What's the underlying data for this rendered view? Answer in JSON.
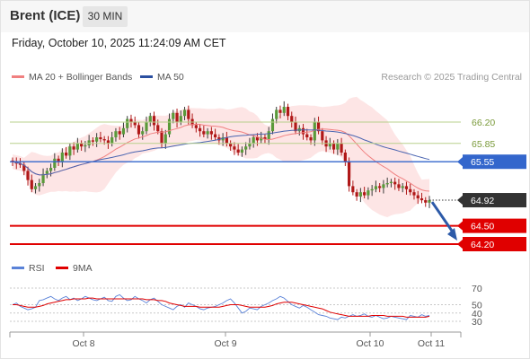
{
  "header": {
    "instrument": "Brent (ICE)",
    "timeframe": "30 MIN"
  },
  "timestamp": "Friday, October 10, 2025 11:24:09 AM CET",
  "legend": {
    "ma20_bb": "MA 20 + Bollinger Bands",
    "ma50": "MA 50",
    "credit": "Research © 2025 Trading Central"
  },
  "rsi_legend": {
    "rsi": "RSI",
    "ma9": "9MA"
  },
  "levels": {
    "r2": "66.20",
    "r1": "65.85",
    "pivot": "65.55",
    "last": "64.92",
    "s1": "64.50",
    "s2": "64.20"
  },
  "rsi_axis": [
    "70",
    "50",
    "40",
    "30"
  ],
  "x_axis": [
    "Oct 8",
    "Oct 9",
    "Oct 10",
    "Oct 11"
  ],
  "colors": {
    "pivot": "#3366cc",
    "support": "#e00000",
    "resistance": "#b8d08c",
    "last": "#333333",
    "bb": "#fde1e1",
    "ma20": "#f08080",
    "ma50": "#4a64b0",
    "rsi": "#5a82d8",
    "rsi_ma": "#e00000"
  },
  "chart_data": [
    {
      "type": "candlestick",
      "title": "Brent (ICE)",
      "timeframe": "30 MIN",
      "ylim": [
        64.2,
        66.5
      ],
      "x_ticks": [
        "Oct 8",
        "Oct 9",
        "Oct 10",
        "Oct 11"
      ],
      "horizontal_levels": [
        66.2,
        65.85,
        65.55,
        64.92,
        64.5,
        64.2
      ],
      "last_price": 64.92,
      "forecast_direction": "down",
      "close": [
        65.55,
        65.52,
        65.5,
        65.4,
        65.25,
        65.1,
        65.15,
        65.2,
        65.35,
        65.4,
        65.45,
        65.6,
        65.55,
        65.7,
        65.65,
        65.8,
        65.75,
        65.85,
        65.8,
        65.82,
        65.9,
        65.88,
        65.95,
        65.92,
        65.9,
        65.85,
        65.95,
        66.05,
        66.0,
        66.1,
        66.25,
        66.2,
        66.15,
        66.0,
        66.05,
        66.2,
        66.3,
        66.15,
        66.05,
        65.85,
        66.0,
        66.25,
        66.35,
        66.2,
        66.3,
        66.4,
        66.25,
        66.15,
        66.1,
        66.05,
        66.0,
        66.05,
        66.0,
        65.95,
        65.9,
        65.95,
        65.85,
        65.8,
        65.75,
        65.7,
        65.75,
        65.8,
        65.85,
        65.95,
        65.9,
        65.95,
        65.92,
        66.05,
        66.25,
        66.4,
        66.35,
        66.45,
        66.3,
        66.2,
        66.05,
        66.1,
        66.0,
        65.95,
        65.9,
        66.2,
        66.05,
        65.9,
        65.8,
        65.85,
        65.75,
        65.85,
        65.7,
        65.55,
        65.15,
        65.05,
        64.98,
        65.05,
        65.0,
        65.08,
        65.1,
        65.15,
        65.12,
        65.18,
        65.2,
        65.22,
        65.18,
        65.12,
        65.15,
        65.1,
        65.05,
        65.0,
        64.95,
        64.92,
        64.88,
        64.92
      ],
      "rsi": {
        "ticks": [
          70,
          50,
          40,
          30
        ],
        "series": [
          {
            "name": "RSI",
            "values": [
              50,
              52,
              48,
              46,
              44,
              45,
              47,
              55,
              56,
              58,
              60,
              57,
              55,
              58,
              60,
              56,
              58,
              55,
              57,
              60,
              58,
              56,
              55,
              57,
              59,
              55,
              54,
              60,
              62,
              58,
              55,
              56,
              60,
              57,
              55,
              52,
              56,
              58,
              54,
              50,
              48,
              46,
              44,
              48,
              50,
              47,
              52,
              50,
              48,
              45,
              44,
              46,
              47,
              48,
              50,
              52,
              55,
              57,
              52,
              46,
              40,
              42,
              46,
              45,
              44,
              48,
              50,
              52,
              55,
              57,
              60,
              58,
              54,
              50,
              48,
              46,
              49,
              47,
              44,
              41,
              38,
              37,
              36,
              34,
              33,
              32,
              35,
              34,
              36,
              38,
              36,
              37,
              39,
              36,
              35,
              37,
              35,
              33,
              34,
              36,
              35,
              34,
              33,
              32,
              37,
              36,
              35,
              38,
              36,
              37
            ]
          },
          {
            "name": "9MA",
            "values": [
              50,
              50,
              49,
              48,
              47,
              47,
              47,
              48,
              49,
              51,
              52,
              53,
              54,
              55,
              56,
              56,
              57,
              57,
              57,
              57,
              58,
              58,
              57,
              57,
              57,
              57,
              57,
              57,
              57,
              57,
              57,
              57,
              57,
              57,
              57,
              56,
              56,
              56,
              55,
              55,
              54,
              52,
              51,
              50,
              49,
              48,
              48,
              48,
              48,
              47,
              47,
              47,
              47,
              47,
              47,
              48,
              49,
              50,
              50,
              50,
              49,
              48,
              47,
              47,
              47,
              47,
              47,
              48,
              49,
              51,
              52,
              53,
              53,
              53,
              52,
              51,
              50,
              49,
              48,
              47,
              46,
              45,
              43,
              41,
              40,
              39,
              38,
              37,
              36,
              36,
              36,
              36,
              36,
              36,
              37,
              37,
              37,
              37,
              36,
              36,
              36,
              36,
              36,
              35,
              35,
              35,
              35,
              35,
              35,
              36
            ]
          }
        ]
      }
    }
  ]
}
